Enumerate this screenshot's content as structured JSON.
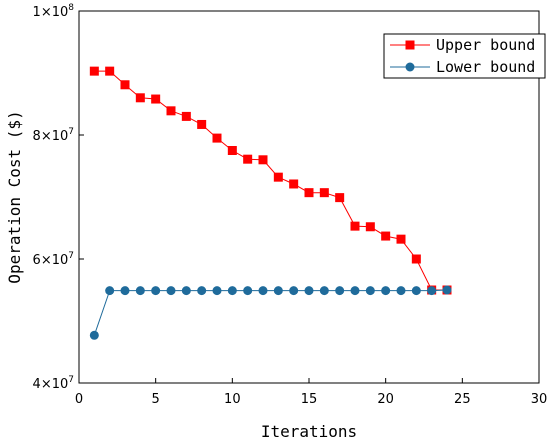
{
  "chart_data": {
    "type": "line",
    "xlabel": "Iterations",
    "ylabel": "Operation Cost ($)",
    "xlim": [
      0,
      30
    ],
    "ylim": [
      40000000,
      100000000
    ],
    "xticks": [
      0,
      5,
      10,
      15,
      20,
      25,
      30
    ],
    "xtick_labels": [
      "0",
      "5",
      "10",
      "15",
      "20",
      "25",
      "30"
    ],
    "yticks": [
      {
        "value": 40000000,
        "mantissa": "4",
        "base": "×10",
        "exp": "7"
      },
      {
        "value": 60000000,
        "mantissa": "6",
        "base": "×10",
        "exp": "7"
      },
      {
        "value": 80000000,
        "mantissa": "8",
        "base": "×10",
        "exp": "7"
      },
      {
        "value": 100000000,
        "mantissa": "1",
        "base": "×10",
        "exp": "8"
      }
    ],
    "grid": false,
    "legend_position": "top-right",
    "series": [
      {
        "name": "Upper bound",
        "color": "#ff0000",
        "marker": "square",
        "x": [
          1,
          2,
          3,
          4,
          5,
          6,
          7,
          8,
          9,
          10,
          11,
          12,
          13,
          14,
          15,
          16,
          17,
          18,
          19,
          20,
          21,
          22,
          23,
          24
        ],
        "y": [
          90300000,
          90300000,
          88100000,
          86000000,
          85800000,
          83900000,
          83000000,
          81700000,
          79500000,
          77500000,
          76100000,
          76000000,
          73200000,
          72100000,
          70700000,
          70700000,
          69900000,
          65300000,
          65200000,
          63700000,
          63200000,
          60000000,
          55000000,
          55000000
        ]
      },
      {
        "name": "Lower bound",
        "color": "#1f6b9b",
        "marker": "circle",
        "x": [
          1,
          2,
          3,
          4,
          5,
          6,
          7,
          8,
          9,
          10,
          11,
          12,
          13,
          14,
          15,
          16,
          17,
          18,
          19,
          20,
          21,
          22,
          23,
          24
        ],
        "y": [
          47700000,
          54900000,
          54900000,
          54900000,
          54900000,
          54900000,
          54900000,
          54900000,
          54900000,
          54900000,
          54900000,
          54900000,
          54900000,
          54900000,
          54900000,
          54900000,
          54900000,
          54900000,
          54900000,
          54900000,
          54900000,
          54900000,
          54900000,
          55000000
        ]
      }
    ]
  }
}
